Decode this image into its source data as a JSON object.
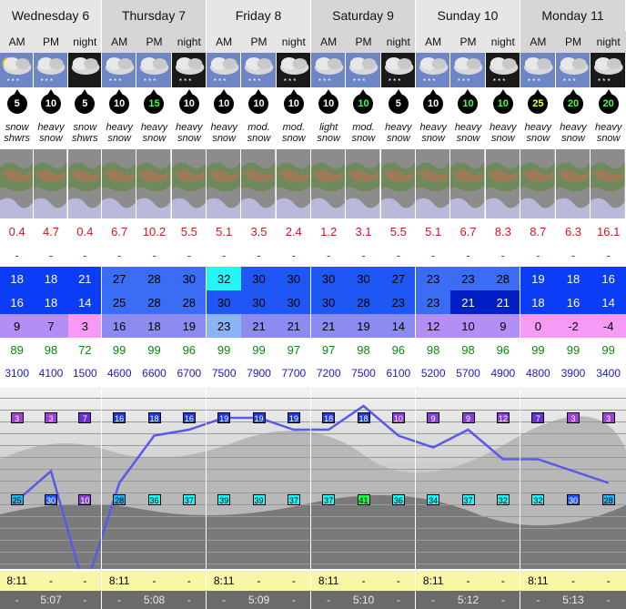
{
  "days": [
    {
      "name": "Wednesday 6",
      "sunrise": "8:11",
      "sunset": "5:07"
    },
    {
      "name": "Thursday 7",
      "sunrise": "8:11",
      "sunset": "5:08"
    },
    {
      "name": "Friday 8",
      "sunrise": "8:11",
      "sunset": "5:09"
    },
    {
      "name": "Saturday 9",
      "sunrise": "8:11",
      "sunset": "5:10"
    },
    {
      "name": "Sunday 10",
      "sunrise": "8:11",
      "sunset": "5:12"
    },
    {
      "name": "Monday 11",
      "sunrise": "8:11",
      "sunset": "5:13"
    }
  ],
  "periods": [
    "AM",
    "PM",
    "night",
    "AM",
    "PM",
    "night",
    "AM",
    "PM",
    "night",
    "AM",
    "PM",
    "night",
    "AM",
    "PM",
    "night",
    "AM",
    "PM",
    "night"
  ],
  "icons": [
    "sun-cloud-snow-icon",
    "cloud-snow-icon",
    "moon-cloud-icon",
    "cloud-snow-icon",
    "cloud-snow-icon",
    "cloud-snow-night-icon",
    "cloud-snow-icon",
    "cloud-snow-icon",
    "cloud-snow-night-icon",
    "cloud-snow-icon",
    "cloud-snow-icon",
    "cloud-snow-night-icon",
    "cloud-snow-icon",
    "cloud-snow-icon",
    "cloud-snow-night-icon",
    "cloud-snow-icon",
    "cloud-snow-icon",
    "cloud-snow-night-icon"
  ],
  "wind": [
    {
      "v": "5",
      "c": "#ffffff"
    },
    {
      "v": "10",
      "c": "#ffffff"
    },
    {
      "v": "5",
      "c": "#ffffff"
    },
    {
      "v": "10",
      "c": "#ffffff"
    },
    {
      "v": "15",
      "c": "#44ff44"
    },
    {
      "v": "10",
      "c": "#ffffff"
    },
    {
      "v": "10",
      "c": "#ffffff"
    },
    {
      "v": "10",
      "c": "#ffffff"
    },
    {
      "v": "10",
      "c": "#ffffff"
    },
    {
      "v": "10",
      "c": "#ffffff"
    },
    {
      "v": "10",
      "c": "#44ff44"
    },
    {
      "v": "5",
      "c": "#ffffff"
    },
    {
      "v": "10",
      "c": "#ffffff"
    },
    {
      "v": "10",
      "c": "#44ff44"
    },
    {
      "v": "10",
      "c": "#44ff44"
    },
    {
      "v": "25",
      "c": "#ffff33"
    },
    {
      "v": "20",
      "c": "#44ff44"
    },
    {
      "v": "20",
      "c": "#44ff44"
    }
  ],
  "descriptions": [
    [
      "snow",
      "shwrs"
    ],
    [
      "heavy",
      "snow"
    ],
    [
      "snow",
      "shwrs"
    ],
    [
      "heavy",
      "snow"
    ],
    [
      "heavy",
      "snow"
    ],
    [
      "heavy",
      "snow"
    ],
    [
      "heavy",
      "snow"
    ],
    [
      "mod.",
      "snow"
    ],
    [
      "mod.",
      "snow"
    ],
    [
      "light",
      "snow"
    ],
    [
      "mod.",
      "snow"
    ],
    [
      "heavy",
      "snow"
    ],
    [
      "heavy",
      "snow"
    ],
    [
      "heavy",
      "snow"
    ],
    [
      "heavy",
      "snow"
    ],
    [
      "heavy",
      "snow"
    ],
    [
      "heavy",
      "snow"
    ],
    [
      "heavy",
      "snow"
    ]
  ],
  "snow": [
    "0.4",
    "4.7",
    "0.4",
    "6.7",
    "10.2",
    "5.5",
    "5.1",
    "3.5",
    "2.4",
    "1.2",
    "3.1",
    "5.5",
    "5.1",
    "6.7",
    "8.3",
    "8.7",
    "6.3",
    "16.1"
  ],
  "rain": [
    "-",
    "-",
    "-",
    "-",
    "-",
    "-",
    "-",
    "-",
    "-",
    "-",
    "-",
    "-",
    "-",
    "-",
    "-",
    "-",
    "-",
    "-"
  ],
  "temp_max": [
    "18",
    "18",
    "21",
    "27",
    "28",
    "30",
    "32",
    "30",
    "30",
    "30",
    "30",
    "27",
    "23",
    "23",
    "28",
    "19",
    "18",
    "16"
  ],
  "temp_min": [
    "16",
    "18",
    "14",
    "25",
    "28",
    "28",
    "30",
    "30",
    "30",
    "30",
    "28",
    "23",
    "23",
    "21",
    "21",
    "18",
    "16",
    "14"
  ],
  "temp_max_colors": [
    "#0a3df5",
    "#0a3df5",
    "#0a3df5",
    "#3b6cf6",
    "#3b6cf6",
    "#3b6cf6",
    "#22f7f7",
    "#1f57f6",
    "#1f57f6",
    "#1f57f6",
    "#1f57f6",
    "#1f57f6",
    "#3b6cf6",
    "#3b6cf6",
    "#3b6cf6",
    "#0a3df5",
    "#0a3df5",
    "#0a3df5"
  ],
  "temp_min_colors": [
    "#0a3df5",
    "#0a3df5",
    "#0a3df5",
    "#3b6cf6",
    "#3b6cf6",
    "#3b6cf6",
    "#1f57f6",
    "#1f57f6",
    "#1f57f6",
    "#1f57f6",
    "#1f57f6",
    "#1f57f6",
    "#3b6cf6",
    "#001fc6",
    "#001fc6",
    "#0a3df5",
    "#0a3df5",
    "#0a3df5"
  ],
  "temp_min_textcolors": [
    "#fff",
    "#fff",
    "#fff",
    "#000",
    "#000",
    "#000",
    "#000",
    "#000",
    "#000",
    "#000",
    "#000",
    "#000",
    "#000",
    "#fff",
    "#fff",
    "#fff",
    "#fff",
    "#fff"
  ],
  "feels": [
    "9",
    "7",
    "3",
    "16",
    "18",
    "19",
    "23",
    "21",
    "21",
    "21",
    "19",
    "14",
    "12",
    "10",
    "9",
    "0",
    "-2",
    "-4"
  ],
  "feels_colors": [
    "#b38ef5",
    "#b38ef5",
    "#f59af5",
    "#8c8cf0",
    "#8c8cf0",
    "#8c8cf0",
    "#8ab4f5",
    "#8c8cf0",
    "#8c8cf0",
    "#8c8cf0",
    "#8c8cf0",
    "#8c8cf0",
    "#b38ef5",
    "#b38ef5",
    "#b38ef5",
    "#f59af5",
    "#f59af5",
    "#f59af5"
  ],
  "humidity": [
    "89",
    "98",
    "72",
    "99",
    "99",
    "96",
    "99",
    "99",
    "97",
    "97",
    "98",
    "96",
    "98",
    "98",
    "96",
    "99",
    "99",
    "99"
  ],
  "freezing": [
    "3100",
    "4100",
    "1500",
    "4600",
    "6600",
    "6700",
    "7500",
    "7900",
    "7700",
    "7200",
    "7500",
    "6100",
    "5200",
    "5700",
    "4900",
    "4800",
    "3900",
    "3400"
  ],
  "chart_data": {
    "type": "line",
    "series": [
      {
        "values": [
          3,
          3,
          7,
          16,
          18,
          16,
          19,
          19,
          19,
          18,
          18,
          10,
          9,
          9,
          12,
          7,
          3,
          3
        ],
        "colors": [
          "#a03fd5",
          "#a03fd5",
          "#6a2fd5",
          "#1f3ad5",
          "#1f3ad5",
          "#1f3ad5",
          "#1f3ad5",
          "#1f3ad5",
          "#1f3ad5",
          "#1f3ad5",
          "#1f3ad5",
          "#8a3fd5",
          "#8a3fd5",
          "#8a3fd5",
          "#8a3fd5",
          "#6a2fd5",
          "#a03fd5",
          "#a03fd5"
        ]
      },
      {
        "values": [
          25,
          30,
          10,
          28,
          36,
          37,
          39,
          39,
          37,
          37,
          41,
          36,
          34,
          37,
          32,
          32,
          30,
          28
        ],
        "colors": [
          "#1fb6f6",
          "#1f57f6",
          "#8a3fd5",
          "#1fb6f6",
          "#22f7f7",
          "#22f7f7",
          "#22f7f7",
          "#22f7f7",
          "#22f7f7",
          "#22f7f7",
          "#22f752",
          "#22f7f7",
          "#22f7f7",
          "#22f7f7",
          "#22f7f7",
          "#22f7f7",
          "#1f57f6",
          "#1fb6f6"
        ]
      }
    ]
  }
}
